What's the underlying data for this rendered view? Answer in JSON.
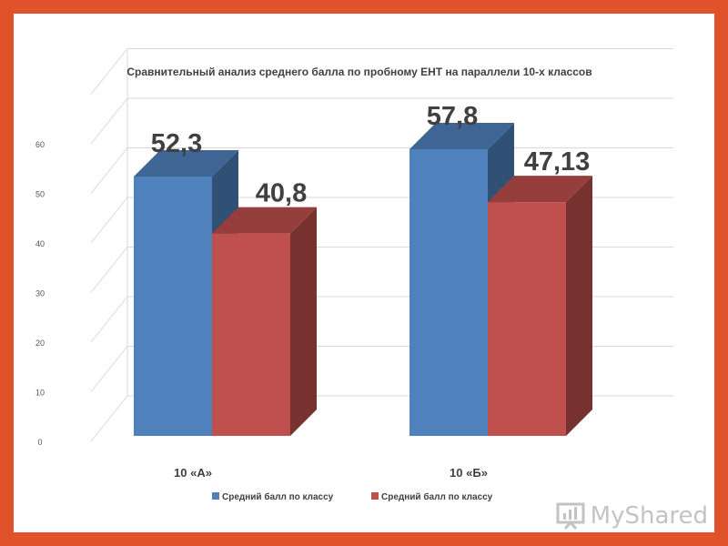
{
  "chart_data": {
    "type": "bar",
    "style": "3d-clustered-column",
    "title": "Сравнительный анализ среднего балла  по пробному ЕНТ на параллели 10-х классов",
    "categories": [
      "10 «А»",
      "10 «Б»"
    ],
    "series": [
      {
        "name": "Средний балл по классу",
        "values": [
          52.3,
          57.8
        ],
        "labels": [
          "52,3",
          "57,8"
        ],
        "color": "#4f81bd"
      },
      {
        "name": "Средний балл по классу",
        "values": [
          40.8,
          47.13
        ],
        "labels": [
          "40,8",
          "47,13"
        ],
        "color": "#c0504d"
      }
    ],
    "yticks": [
      "0",
      "10",
      "20",
      "30",
      "40",
      "50",
      "60"
    ],
    "ylim": [
      0,
      70
    ],
    "grid": true,
    "legend_position": "bottom"
  },
  "watermark": {
    "text": "MyShared"
  }
}
